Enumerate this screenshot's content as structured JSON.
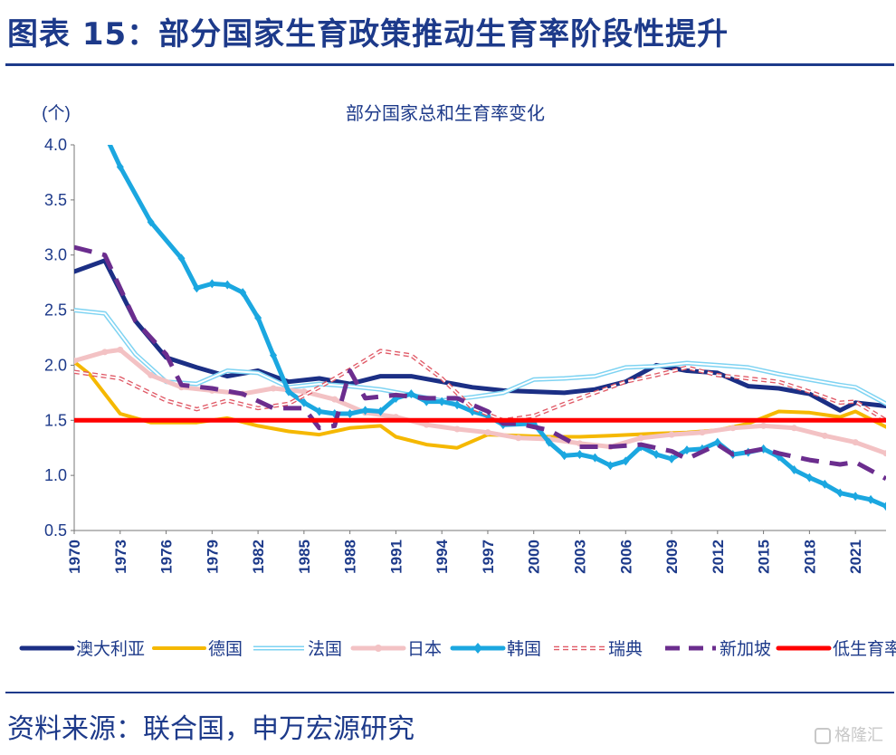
{
  "header": {
    "title": "图表 15：部分国家生育政策推动生育率阶段性提升"
  },
  "footer": {
    "source": "资料来源：联合国，申万宏源研究"
  },
  "watermark": {
    "text": "格隆汇"
  },
  "chart_data": {
    "type": "line",
    "title": "部分国家总和生育率变化",
    "ylabel": "(个)",
    "xlabel": "",
    "ylim": [
      0.5,
      4.0
    ],
    "xlim": [
      1970,
      2023
    ],
    "yticks": [
      "0.5",
      "1.0",
      "1.5",
      "2.0",
      "2.5",
      "3.0",
      "3.5",
      "4.0"
    ],
    "xticks": [
      "1970",
      "1973",
      "1976",
      "1979",
      "1982",
      "1985",
      "1988",
      "1991",
      "1994",
      "1997",
      "2000",
      "2003",
      "2006",
      "2009",
      "2012",
      "2015",
      "2018",
      "2021"
    ],
    "legend_position": "bottom",
    "series": [
      {
        "name": "澳大利亚",
        "color": "#1b2f85",
        "style": "solid-thick",
        "points": [
          [
            1970,
            2.85
          ],
          [
            1972,
            2.95
          ],
          [
            1974,
            2.4
          ],
          [
            1976,
            2.07
          ],
          [
            1978,
            1.98
          ],
          [
            1980,
            1.9
          ],
          [
            1982,
            1.95
          ],
          [
            1984,
            1.85
          ],
          [
            1986,
            1.88
          ],
          [
            1988,
            1.83
          ],
          [
            1990,
            1.9
          ],
          [
            1992,
            1.9
          ],
          [
            1994,
            1.85
          ],
          [
            1996,
            1.8
          ],
          [
            1998,
            1.77
          ],
          [
            2000,
            1.76
          ],
          [
            2002,
            1.75
          ],
          [
            2004,
            1.78
          ],
          [
            2006,
            1.85
          ],
          [
            2008,
            2.0
          ],
          [
            2010,
            1.95
          ],
          [
            2012,
            1.93
          ],
          [
            2014,
            1.81
          ],
          [
            2016,
            1.79
          ],
          [
            2018,
            1.74
          ],
          [
            2020,
            1.59
          ],
          [
            2021,
            1.66
          ],
          [
            2023,
            1.63
          ]
        ]
      },
      {
        "name": "德国",
        "color": "#f5b800",
        "style": "solid",
        "points": [
          [
            1970,
            2.03
          ],
          [
            1971,
            1.92
          ],
          [
            1973,
            1.56
          ],
          [
            1975,
            1.48
          ],
          [
            1978,
            1.48
          ],
          [
            1980,
            1.52
          ],
          [
            1982,
            1.45
          ],
          [
            1984,
            1.4
          ],
          [
            1986,
            1.37
          ],
          [
            1988,
            1.43
          ],
          [
            1990,
            1.45
          ],
          [
            1991,
            1.35
          ],
          [
            1993,
            1.28
          ],
          [
            1995,
            1.25
          ],
          [
            1997,
            1.37
          ],
          [
            1999,
            1.36
          ],
          [
            2001,
            1.35
          ],
          [
            2003,
            1.35
          ],
          [
            2005,
            1.36
          ],
          [
            2008,
            1.38
          ],
          [
            2010,
            1.39
          ],
          [
            2012,
            1.41
          ],
          [
            2014,
            1.47
          ],
          [
            2016,
            1.58
          ],
          [
            2018,
            1.57
          ],
          [
            2020,
            1.53
          ],
          [
            2021,
            1.58
          ],
          [
            2023,
            1.44
          ]
        ]
      },
      {
        "name": "法国",
        "color": "#7ed3f2",
        "style": "double",
        "points": [
          [
            1970,
            2.5
          ],
          [
            1972,
            2.47
          ],
          [
            1974,
            2.1
          ],
          [
            1976,
            1.85
          ],
          [
            1978,
            1.83
          ],
          [
            1980,
            1.95
          ],
          [
            1982,
            1.93
          ],
          [
            1984,
            1.8
          ],
          [
            1986,
            1.83
          ],
          [
            1988,
            1.81
          ],
          [
            1990,
            1.78
          ],
          [
            1992,
            1.73
          ],
          [
            1994,
            1.68
          ],
          [
            1996,
            1.71
          ],
          [
            1998,
            1.75
          ],
          [
            2000,
            1.87
          ],
          [
            2002,
            1.88
          ],
          [
            2004,
            1.9
          ],
          [
            2006,
            1.98
          ],
          [
            2008,
            1.99
          ],
          [
            2010,
            2.02
          ],
          [
            2012,
            2.0
          ],
          [
            2014,
            1.98
          ],
          [
            2016,
            1.92
          ],
          [
            2018,
            1.87
          ],
          [
            2020,
            1.82
          ],
          [
            2021,
            1.8
          ],
          [
            2023,
            1.65
          ]
        ]
      },
      {
        "name": "日本",
        "color": "#f3c2c4",
        "style": "dotted-thick",
        "points": [
          [
            1970,
            2.04
          ],
          [
            1972,
            2.12
          ],
          [
            1973,
            2.14
          ],
          [
            1975,
            1.91
          ],
          [
            1977,
            1.8
          ],
          [
            1979,
            1.77
          ],
          [
            1981,
            1.74
          ],
          [
            1983,
            1.79
          ],
          [
            1985,
            1.76
          ],
          [
            1987,
            1.69
          ],
          [
            1989,
            1.57
          ],
          [
            1991,
            1.53
          ],
          [
            1993,
            1.46
          ],
          [
            1995,
            1.42
          ],
          [
            1997,
            1.39
          ],
          [
            1999,
            1.34
          ],
          [
            2001,
            1.33
          ],
          [
            2003,
            1.29
          ],
          [
            2005,
            1.26
          ],
          [
            2007,
            1.34
          ],
          [
            2009,
            1.37
          ],
          [
            2011,
            1.39
          ],
          [
            2013,
            1.43
          ],
          [
            2015,
            1.45
          ],
          [
            2017,
            1.43
          ],
          [
            2019,
            1.36
          ],
          [
            2021,
            1.3
          ],
          [
            2023,
            1.2
          ]
        ]
      },
      {
        "name": "韩国",
        "color": "#1ba7e0",
        "style": "solid-thick-markers",
        "points": [
          [
            1970,
            4.53
          ],
          [
            1972,
            4.1
          ],
          [
            1973,
            3.8
          ],
          [
            1975,
            3.3
          ],
          [
            1977,
            2.97
          ],
          [
            1978,
            2.7
          ],
          [
            1979,
            2.74
          ],
          [
            1980,
            2.73
          ],
          [
            1981,
            2.66
          ],
          [
            1982,
            2.43
          ],
          [
            1983,
            2.09
          ],
          [
            1984,
            1.76
          ],
          [
            1985,
            1.66
          ],
          [
            1986,
            1.58
          ],
          [
            1987,
            1.56
          ],
          [
            1988,
            1.56
          ],
          [
            1989,
            1.59
          ],
          [
            1990,
            1.58
          ],
          [
            1991,
            1.7
          ],
          [
            1992,
            1.74
          ],
          [
            1993,
            1.67
          ],
          [
            1994,
            1.67
          ],
          [
            1995,
            1.64
          ],
          [
            1996,
            1.58
          ],
          [
            1997,
            1.54
          ],
          [
            1998,
            1.46
          ],
          [
            2000,
            1.47
          ],
          [
            2001,
            1.3
          ],
          [
            2002,
            1.18
          ],
          [
            2003,
            1.19
          ],
          [
            2004,
            1.16
          ],
          [
            2005,
            1.09
          ],
          [
            2006,
            1.13
          ],
          [
            2007,
            1.26
          ],
          [
            2008,
            1.19
          ],
          [
            2009,
            1.15
          ],
          [
            2010,
            1.23
          ],
          [
            2011,
            1.24
          ],
          [
            2012,
            1.3
          ],
          [
            2013,
            1.19
          ],
          [
            2014,
            1.21
          ],
          [
            2015,
            1.24
          ],
          [
            2016,
            1.17
          ],
          [
            2017,
            1.05
          ],
          [
            2018,
            0.98
          ],
          [
            2019,
            0.92
          ],
          [
            2020,
            0.84
          ],
          [
            2021,
            0.81
          ],
          [
            2022,
            0.78
          ],
          [
            2023,
            0.72
          ]
        ]
      },
      {
        "name": "瑞典",
        "color": "#e05a67",
        "style": "dashed-hollow",
        "points": [
          [
            1970,
            1.94
          ],
          [
            1973,
            1.88
          ],
          [
            1976,
            1.68
          ],
          [
            1978,
            1.6
          ],
          [
            1980,
            1.68
          ],
          [
            1982,
            1.61
          ],
          [
            1984,
            1.65
          ],
          [
            1986,
            1.8
          ],
          [
            1988,
            1.96
          ],
          [
            1990,
            2.13
          ],
          [
            1992,
            2.09
          ],
          [
            1994,
            1.88
          ],
          [
            1996,
            1.61
          ],
          [
            1998,
            1.5
          ],
          [
            2000,
            1.54
          ],
          [
            2002,
            1.65
          ],
          [
            2004,
            1.75
          ],
          [
            2006,
            1.85
          ],
          [
            2008,
            1.91
          ],
          [
            2010,
            1.98
          ],
          [
            2012,
            1.91
          ],
          [
            2014,
            1.88
          ],
          [
            2016,
            1.85
          ],
          [
            2018,
            1.76
          ],
          [
            2020,
            1.66
          ],
          [
            2021,
            1.67
          ],
          [
            2023,
            1.5
          ]
        ]
      },
      {
        "name": "新加坡",
        "color": "#6b2d8e",
        "style": "long-dash",
        "points": [
          [
            1970,
            3.07
          ],
          [
            1972,
            3.0
          ],
          [
            1974,
            2.4
          ],
          [
            1976,
            2.1
          ],
          [
            1977,
            1.82
          ],
          [
            1979,
            1.79
          ],
          [
            1981,
            1.74
          ],
          [
            1983,
            1.61
          ],
          [
            1985,
            1.61
          ],
          [
            1986,
            1.43
          ],
          [
            1987,
            1.45
          ],
          [
            1988,
            1.95
          ],
          [
            1989,
            1.7
          ],
          [
            1991,
            1.73
          ],
          [
            1993,
            1.7
          ],
          [
            1995,
            1.7
          ],
          [
            1997,
            1.58
          ],
          [
            1998,
            1.47
          ],
          [
            1999,
            1.47
          ],
          [
            2001,
            1.41
          ],
          [
            2003,
            1.26
          ],
          [
            2005,
            1.26
          ],
          [
            2007,
            1.28
          ],
          [
            2009,
            1.22
          ],
          [
            2010,
            1.15
          ],
          [
            2012,
            1.28
          ],
          [
            2013,
            1.19
          ],
          [
            2015,
            1.24
          ],
          [
            2016,
            1.2
          ],
          [
            2018,
            1.14
          ],
          [
            2020,
            1.1
          ],
          [
            2021,
            1.12
          ],
          [
            2023,
            0.97
          ]
        ]
      },
      {
        "name": "低生育率警",
        "color": "#ff0000",
        "style": "solid-thick",
        "points": [
          [
            1970,
            1.5
          ],
          [
            2023,
            1.5
          ]
        ]
      }
    ]
  }
}
